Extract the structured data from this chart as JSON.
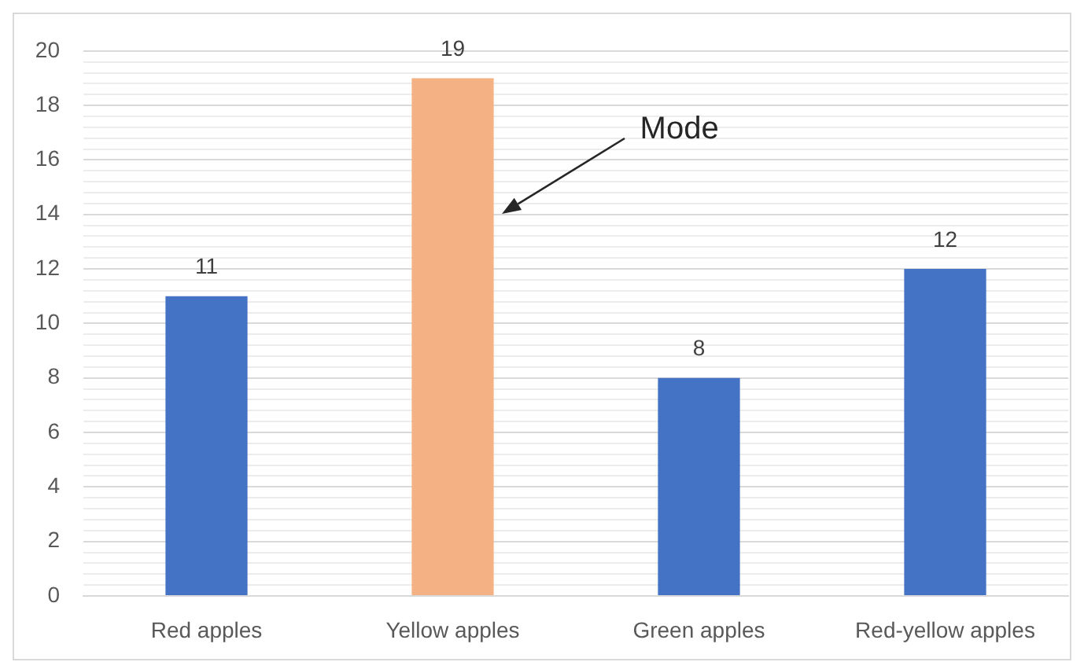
{
  "chart_data": {
    "type": "bar",
    "categories": [
      "Red apples",
      "Yellow apples",
      "Green apples",
      "Red-yellow apples"
    ],
    "values": [
      11,
      19,
      8,
      12
    ],
    "colors": [
      "#4472c4",
      "#f4b183",
      "#4472c4",
      "#4472c4"
    ],
    "ylim": [
      0,
      20
    ],
    "yticks": [
      0,
      {
        "value": 0.4,
        "label": null
      },
      {
        "value": 0.8,
        "label": null
      },
      {
        "value": 1.2,
        "label": null
      },
      {
        "value": 1.6,
        "label": null
      },
      2,
      {
        "value": 2.4,
        "label": null
      },
      {
        "value": 2.8,
        "label": null
      },
      {
        "value": 3.2,
        "label": null
      },
      {
        "value": 3.6,
        "label": null
      },
      4,
      {
        "value": 4.4,
        "label": null
      },
      {
        "value": 4.8,
        "label": null
      },
      {
        "value": 5.2,
        "label": null
      },
      {
        "value": 5.6,
        "label": null
      },
      6,
      {
        "value": 6.4,
        "label": null
      },
      {
        "value": 6.8,
        "label": null
      },
      {
        "value": 7.2,
        "label": null
      },
      {
        "value": 7.6,
        "label": null
      },
      8,
      {
        "value": 8.4,
        "label": null
      },
      {
        "value": 8.8,
        "label": null
      },
      {
        "value": 9.2,
        "label": null
      },
      {
        "value": 9.6,
        "label": null
      },
      10,
      {
        "value": 10.4,
        "label": null
      },
      {
        "value": 10.8,
        "label": null
      },
      {
        "value": 11.2,
        "label": null
      },
      {
        "value": 11.6,
        "label": null
      },
      12,
      {
        "value": 12.4,
        "label": null
      },
      {
        "value": 12.8,
        "label": null
      },
      {
        "value": 13.2,
        "label": null
      },
      {
        "value": 13.6,
        "label": null
      },
      14,
      {
        "value": 14.4,
        "label": null
      },
      {
        "value": 14.8,
        "label": null
      },
      {
        "value": 15.2,
        "label": null
      },
      {
        "value": 15.6,
        "label": null
      },
      16,
      {
        "value": 16.4,
        "label": null
      },
      {
        "value": 16.8,
        "label": null
      },
      {
        "value": 17.2,
        "label": null
      },
      {
        "value": 17.6,
        "label": null
      },
      18,
      {
        "value": 18.4,
        "label": null
      },
      {
        "value": 18.8,
        "label": null
      },
      {
        "value": 19.2,
        "label": null
      },
      {
        "value": 19.6,
        "label": null
      },
      20
    ],
    "grid": "y",
    "data_labels": true,
    "annotations": [
      "Mode"
    ]
  }
}
